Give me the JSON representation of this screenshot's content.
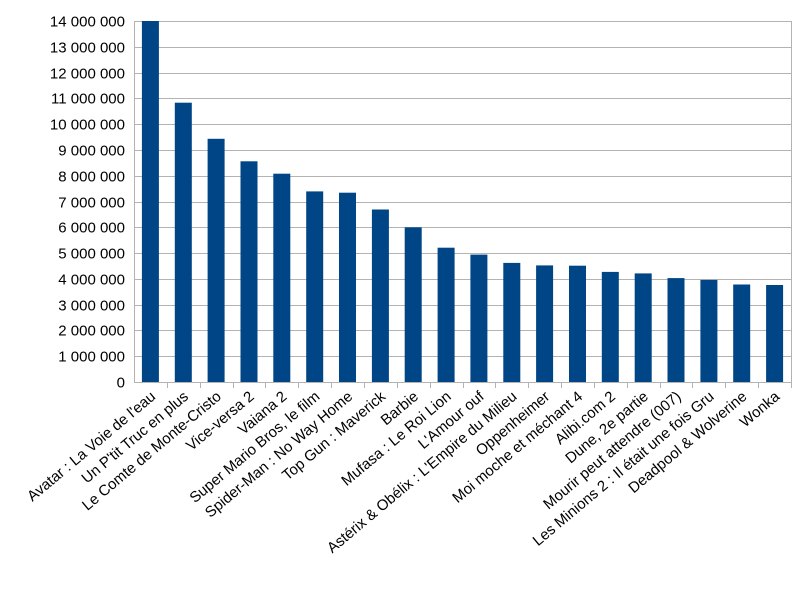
{
  "chart_data": {
    "type": "bar",
    "title": "",
    "xlabel": "",
    "ylabel": "",
    "ylim": [
      0,
      14000000
    ],
    "ystep": 1000000,
    "grid": true,
    "legend": "none",
    "bar_color": "#004586",
    "categories": [
      "Avatar : La Voie de l'eau",
      "Un P'tit Truc en plus",
      "Le Comte de Monte-Cristo",
      "Vice-versa 2",
      "Vaiana 2",
      "Super Mario Bros, le film",
      "Spider-Man : No Way Home",
      "Top Gun : Maverick",
      "Barbie",
      "Mufasa : Le Roi Lion",
      "L'Amour ouf",
      "Astérix & Obélix : L'Empire du Milieu",
      "Oppenheimer",
      "Moi moche et méchant 4",
      "Alibi.com 2",
      "Dune, 2e partie",
      "Mourir peut attendre (007)",
      "Les Minions 2 : Il était une fois Gru",
      "Deadpool & Wolverine",
      "Wonka"
    ],
    "values": [
      14000000,
      10830000,
      9430000,
      8560000,
      8080000,
      7390000,
      7340000,
      6690000,
      6000000,
      5210000,
      4940000,
      4620000,
      4520000,
      4510000,
      4270000,
      4210000,
      4030000,
      3960000,
      3780000,
      3760000
    ],
    "ytick_labels": [
      "0",
      "1 000 000",
      "2 000 000",
      "3 000 000",
      "4 000 000",
      "5 000 000",
      "6 000 000",
      "7 000 000",
      "8 000 000",
      "9 000 000",
      "10 000 000",
      "11 000 000",
      "12 000 000",
      "13 000 000",
      "14 000 000"
    ]
  }
}
